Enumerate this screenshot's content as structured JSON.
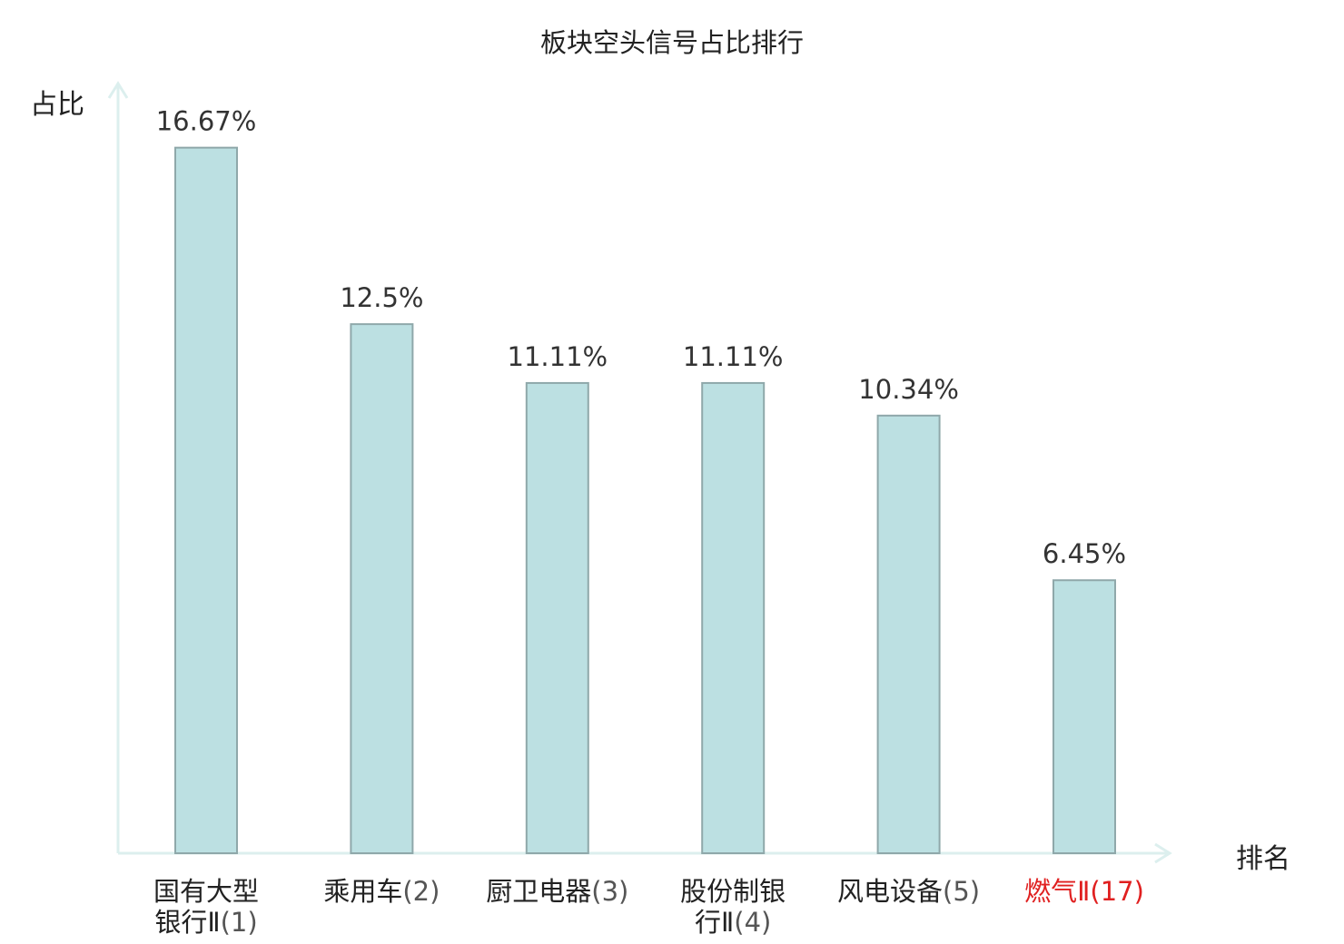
{
  "title": "板块空头信号占比排行",
  "ylabel": "占比",
  "xlabel": "排名",
  "colors": {
    "bar_fill": "#bce0e2",
    "bar_stroke": "#8fa8aa",
    "axis": "#dcefee",
    "value_label": "#333333",
    "highlight": "#e02020"
  },
  "chart_data": {
    "type": "bar",
    "title": "板块空头信号占比排行",
    "xlabel": "排名",
    "ylabel": "占比",
    "categories": [
      {
        "name_lines": [
          "国有大型",
          "银行Ⅱ"
        ],
        "rank": "(1)",
        "highlight": false
      },
      {
        "name_lines": [
          "乘用车"
        ],
        "rank": "(2)",
        "highlight": false
      },
      {
        "name_lines": [
          "厨卫电器"
        ],
        "rank": "(3)",
        "highlight": false
      },
      {
        "name_lines": [
          "股份制银",
          "行Ⅱ"
        ],
        "rank": "(4)",
        "highlight": false
      },
      {
        "name_lines": [
          "风电设备"
        ],
        "rank": "(5)",
        "highlight": false
      },
      {
        "name_lines": [
          "燃气Ⅱ"
        ],
        "rank": "(17)",
        "highlight": true
      }
    ],
    "values": [
      16.67,
      12.5,
      11.11,
      11.11,
      10.34,
      6.45
    ],
    "value_labels": [
      "16.67%",
      "12.5%",
      "11.11%",
      "11.11%",
      "10.34%",
      "6.45%"
    ],
    "ylim": [
      0,
      18.4
    ],
    "grid": false,
    "legend": "none"
  }
}
